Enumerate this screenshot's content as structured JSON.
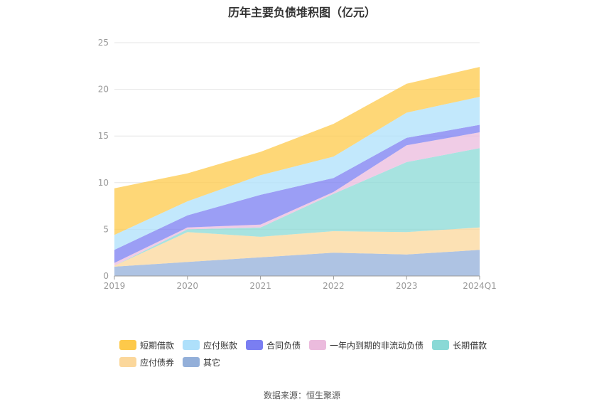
{
  "chart_data": {
    "type": "area",
    "title": "历年主要负债堆积图（亿元）",
    "categories": [
      "2019",
      "2020",
      "2021",
      "2022",
      "2023",
      "2024Q1"
    ],
    "ylim": [
      0,
      25
    ],
    "yticks": [
      0,
      5,
      10,
      15,
      20,
      25
    ],
    "grid": true,
    "legend_position": "bottom",
    "series": [
      {
        "name": "其它",
        "color": "#93afd9",
        "values": [
          1.0,
          1.5,
          2.0,
          2.5,
          2.3,
          2.8
        ]
      },
      {
        "name": "应付债券",
        "color": "#fbd79b",
        "values": [
          0.1,
          3.2,
          2.2,
          2.3,
          2.4,
          2.4
        ]
      },
      {
        "name": "长期借款",
        "color": "#8ad9d6",
        "values": [
          0.0,
          0.3,
          1.0,
          4.0,
          7.5,
          8.5
        ]
      },
      {
        "name": "一年内到期的非流动负债",
        "color": "#ebbbdd",
        "values": [
          0.3,
          0.2,
          0.3,
          0.2,
          1.8,
          1.7
        ]
      },
      {
        "name": "合同负债",
        "color": "#7a7ef2",
        "values": [
          1.4,
          1.3,
          3.2,
          1.5,
          0.8,
          0.8
        ]
      },
      {
        "name": "应付账款",
        "color": "#aee0fb",
        "values": [
          1.6,
          1.5,
          2.1,
          2.3,
          2.7,
          3.0
        ]
      },
      {
        "name": "短期借款",
        "color": "#fdc94a",
        "values": [
          5.0,
          3.0,
          2.5,
          3.5,
          3.1,
          3.2
        ]
      }
    ]
  },
  "legend": {
    "row1": [
      "短期借款",
      "应付账款",
      "合同负债",
      "一年内到期的非流动负债",
      "长期借款"
    ],
    "row2": [
      "应付债券",
      "其它"
    ],
    "colors": {
      "短期借款": "#fdc94a",
      "应付账款": "#aee0fb",
      "合同负债": "#7a7ef2",
      "一年内到期的非流动负债": "#ebbbdd",
      "长期借款": "#8ad9d6",
      "应付债券": "#fbd79b",
      "其它": "#93afd9"
    }
  },
  "source": "数据来源：恒生聚源"
}
